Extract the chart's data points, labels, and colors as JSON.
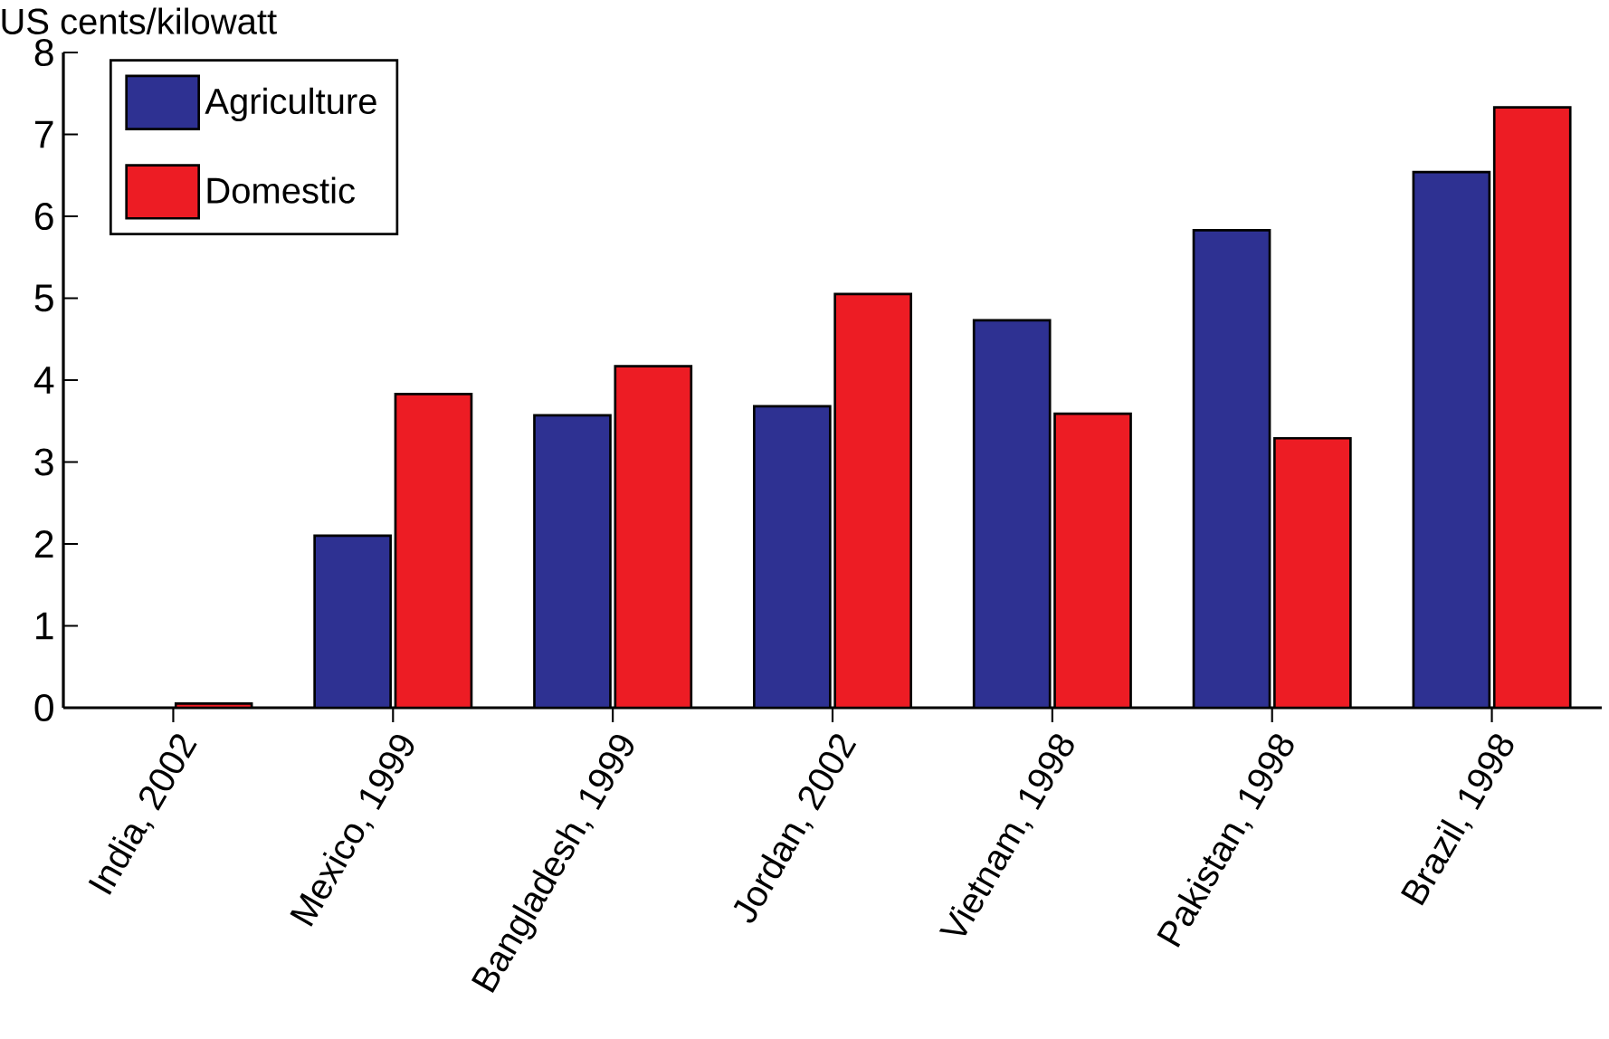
{
  "chart_data": {
    "type": "bar",
    "ylabel": "US cents/kilowatt",
    "categories": [
      "India, 2002",
      "Mexico, 1999",
      "Bangladesh, 1999",
      "Jordan, 2002",
      "Vietnam, 1998",
      "Pakistan, 1998",
      "Brazil, 1998"
    ],
    "series": [
      {
        "name": "Agriculture",
        "color": "#2e3192",
        "values": [
          null,
          2.1,
          3.57,
          3.68,
          4.73,
          5.83,
          6.54
        ]
      },
      {
        "name": "Domestic",
        "color": "#ed1c24",
        "values": [
          0.05,
          3.83,
          4.17,
          5.05,
          3.59,
          3.29,
          7.33
        ]
      }
    ],
    "ylim": [
      0,
      8
    ],
    "yticks": [
      0,
      1,
      2,
      3,
      4,
      5,
      6,
      7,
      8
    ],
    "legend": "top left"
  }
}
